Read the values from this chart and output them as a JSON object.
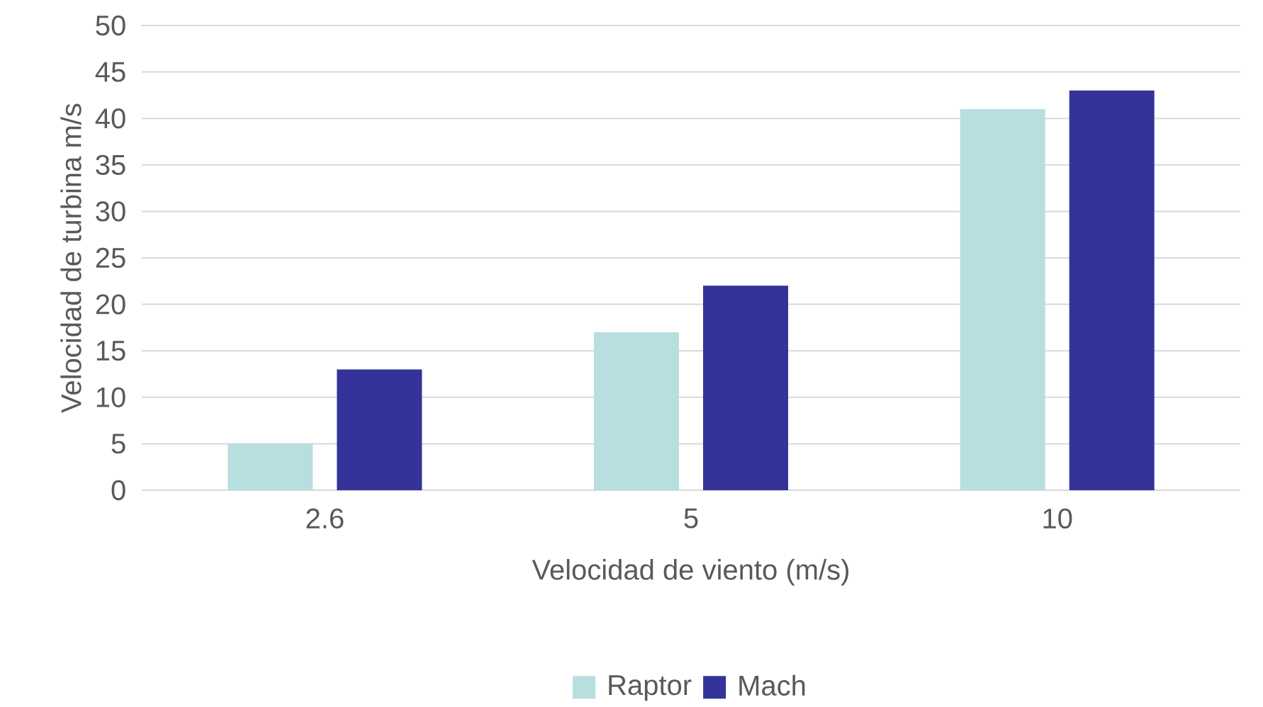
{
  "chart_data": {
    "type": "bar",
    "xlabel": "Velocidad de viento (m/s)",
    "ylabel": "Velocidad de turbina m/s",
    "categories": [
      "2.6",
      "5",
      "10"
    ],
    "series": [
      {
        "name": "Raptor",
        "color": "#b7dfe0",
        "values": [
          5,
          17,
          41
        ]
      },
      {
        "name": "Mach",
        "color": "#333399",
        "values": [
          13,
          22,
          43
        ]
      }
    ],
    "ylim": [
      0,
      50
    ],
    "yticks": [
      0,
      5,
      10,
      15,
      20,
      25,
      30,
      35,
      40,
      45,
      50
    ],
    "grid": "y",
    "legend": "bottom"
  }
}
